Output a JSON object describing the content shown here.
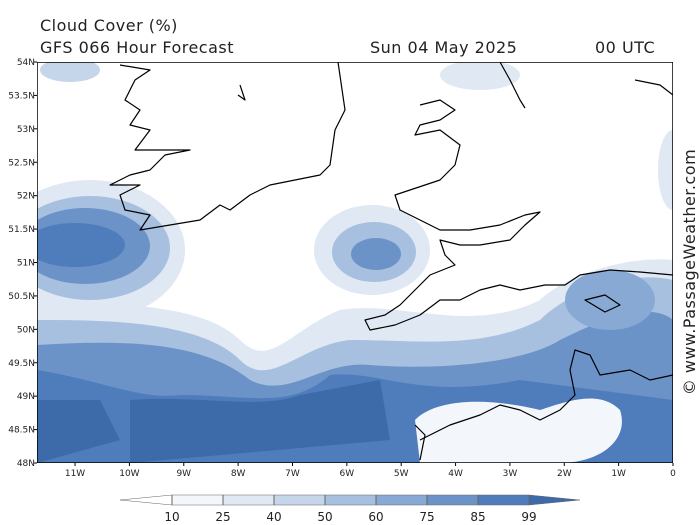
{
  "header": {
    "title": "Cloud Cover (%)",
    "model": "GFS 066 Hour Forecast",
    "date": "Sun 04 May 2025",
    "time": "00 UTC"
  },
  "credit": "© www.PassageWeather.com",
  "map": {
    "lonlim": [
      -11.7,
      0
    ],
    "latlim": [
      48,
      54
    ],
    "lat_ticks": [
      {
        "value": 54,
        "label": "54N"
      },
      {
        "value": 53.5,
        "label": "53.5N"
      },
      {
        "value": 53,
        "label": "53N"
      },
      {
        "value": 52.5,
        "label": "52.5N"
      },
      {
        "value": 52,
        "label": "52N"
      },
      {
        "value": 51.5,
        "label": "51.5N"
      },
      {
        "value": 51,
        "label": "51N"
      },
      {
        "value": 50.5,
        "label": "50.5N"
      },
      {
        "value": 50,
        "label": "50N"
      },
      {
        "value": 49.5,
        "label": "49.5N"
      },
      {
        "value": 49,
        "label": "49N"
      },
      {
        "value": 48.5,
        "label": "48.5N"
      },
      {
        "value": 48,
        "label": "48N"
      }
    ],
    "lon_ticks": [
      {
        "value": -11,
        "label": "11W"
      },
      {
        "value": -10,
        "label": "10W"
      },
      {
        "value": -9,
        "label": "9W"
      },
      {
        "value": -8,
        "label": "8W"
      },
      {
        "value": -7,
        "label": "7W"
      },
      {
        "value": -6,
        "label": "6W"
      },
      {
        "value": -5,
        "label": "5W"
      },
      {
        "value": -4,
        "label": "4W"
      },
      {
        "value": -3,
        "label": "3W"
      },
      {
        "value": -2,
        "label": "2W"
      },
      {
        "value": -1,
        "label": "1W"
      },
      0
    ]
  },
  "colorbar": {
    "levels": [
      10,
      25,
      40,
      50,
      60,
      75,
      85,
      99
    ],
    "colors": [
      "#ffffff",
      "#f3f6fb",
      "#dfe8f3",
      "#c5d5ea",
      "#a7c0e0",
      "#88a9d4",
      "#6c93c8",
      "#4f7dbb",
      "#3d6aa9"
    ]
  }
}
